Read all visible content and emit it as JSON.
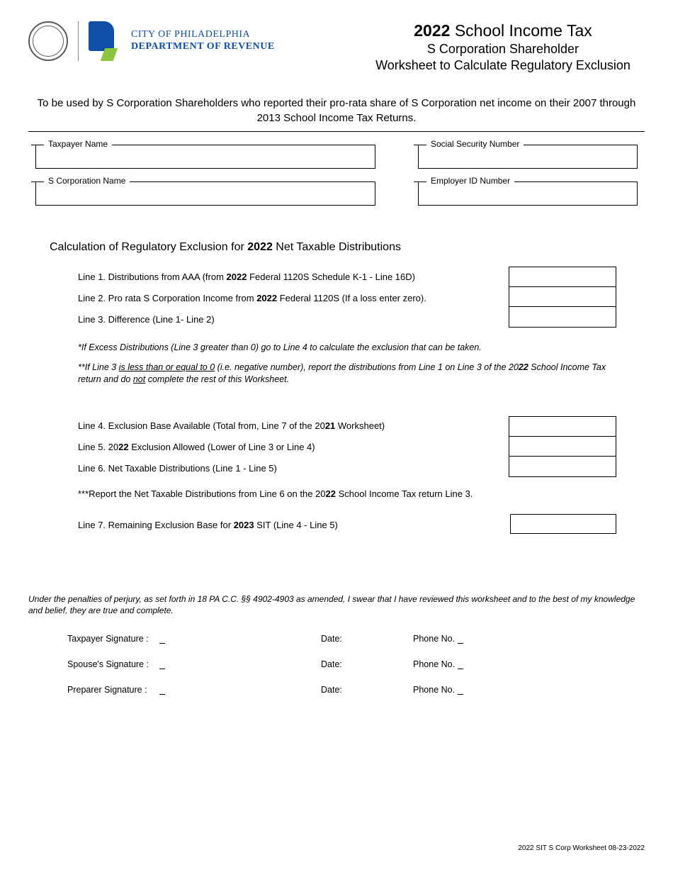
{
  "logo": {
    "org_line1": "CITY OF PHILADELPHIA",
    "org_line2": "DEPARTMENT OF REVENUE"
  },
  "header": {
    "year": "2022",
    "title_main_prefix": " School Income Tax",
    "sub1": "S Corporation Shareholder",
    "sub2": "Worksheet to Calculate Regulatory Exclusion"
  },
  "instruction": "To be used by S Corporation Shareholders who reported their pro-rata share of S Corporation net income on their 2007 through 2013 School Income Tax Returns.",
  "fields": {
    "taxpayer_name_label": "Taxpayer Name",
    "ssn_label": "Social Security Number",
    "scorp_name_label": "S Corporation Name",
    "ein_label": "Employer ID Number"
  },
  "section": {
    "title_pre": "Calculation of Regulatory Exclusion for ",
    "title_year": "2022",
    "title_post": " Net Taxable Distributions"
  },
  "lines": {
    "l1_pre": "Line 1. Distributions from AAA (from ",
    "l1_b": "2022",
    "l1_post": " Federal 1120S Schedule K-1 - Line 16D)",
    "l2_pre": "Line 2. Pro rata S Corporation Income from ",
    "l2_b": "2022",
    "l2_post": " Federal 1120S (If a loss enter zero).",
    "l3": "Line 3. Difference (Line 1- Line 2)",
    "note1": "*If Excess Distributions (Line 3 greater than 0) go to Line 4 to calculate the exclusion that can be taken.",
    "note2_pre": "**If Line 3 ",
    "note2_ul1": "is less than or equal to 0",
    "note2_mid": " (i.e. negative number), report the distributions from Line 1 on Line 3 of the 20",
    "note2_b1": "22",
    "note2_mid2": " School Income Tax return and do ",
    "note2_ul2": "not",
    "note2_post": " complete the rest of this Worksheet.",
    "l4_pre": "Line 4.  Exclusion Base Available (Total from, Line 7 of the 20",
    "l4_b": "21",
    "l4_post": " Worksheet)",
    "l5_pre": "Line 5.  20",
    "l5_b": "22",
    "l5_post": " Exclusion Allowed (Lower of Line 3 or Line 4)",
    "l6": "Line 6. Net Taxable Distributions (Line 1 - Line 5)",
    "note3_pre": "***Report the Net Taxable Distributions from Line 6 on the 20",
    "note3_b": "22",
    "note3_post": " School Income Tax return Line 3.",
    "l7_pre": "Line 7. Remaining Exclusion Base for ",
    "l7_b": "2023",
    "l7_post": " SIT (Line 4 - Line 5)"
  },
  "perjury": "Under the penalties of perjury, as set forth in 18 PA C.C. §§ 4902-4903 as amended, I swear that I have reviewed this worksheet and to the best of my knowledge and belief, they are true and complete.",
  "signatures": {
    "taxpayer": "Taxpayer Signature :",
    "spouse": "Spouse's Signature :",
    "preparer": "Preparer Signature :",
    "date": "Date:",
    "phone": "Phone No."
  },
  "footer": "2022 SIT S Corp Worksheet  08-23-2022",
  "colors": {
    "brand_blue": "#0f4fa8",
    "brand_green": "#8bc53f",
    "text": "#000000",
    "background": "#ffffff"
  }
}
